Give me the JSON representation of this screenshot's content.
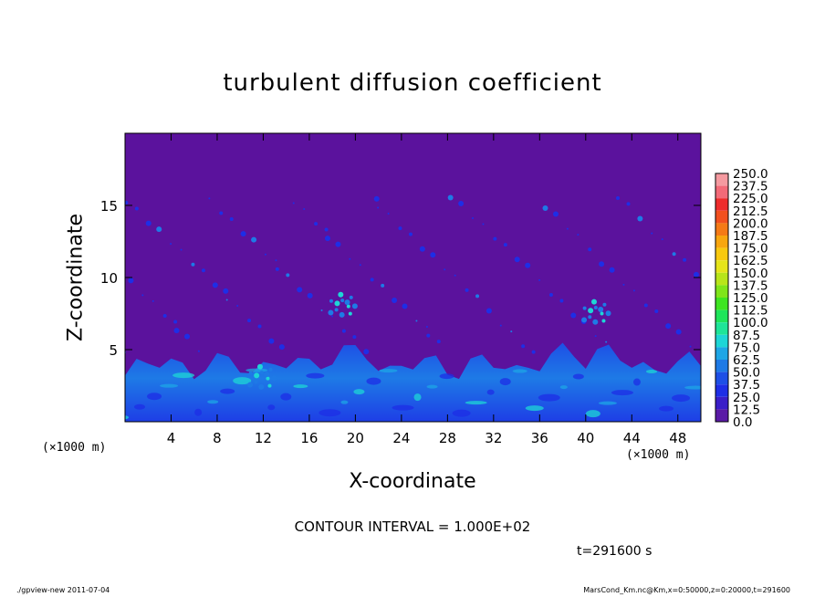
{
  "chart_data": {
    "type": "heatmap",
    "title": "turbulent diffusion coefficient",
    "xlabel": "X-coordinate",
    "ylabel": "Z-coordinate",
    "x_unit": "(×1000 m)",
    "y_unit": "(×1000 m)",
    "xlim": [
      0,
      50
    ],
    "ylim": [
      0,
      20
    ],
    "x_ticks": [
      "4",
      "8",
      "12",
      "16",
      "20",
      "24",
      "28",
      "32",
      "36",
      "40",
      "44",
      "48"
    ],
    "y_ticks": [
      "5",
      "10",
      "15"
    ],
    "colorbar": {
      "levels": [
        "250.0",
        "237.5",
        "225.0",
        "212.5",
        "200.0",
        "187.5",
        "175.0",
        "162.5",
        "150.0",
        "137.5",
        "125.0",
        "112.5",
        "100.0",
        "87.5",
        "75.0",
        "62.5",
        "50.0",
        "37.5",
        "25.0",
        "12.5",
        "0.0"
      ],
      "colors": [
        "#f59aa0",
        "#f36a78",
        "#ee2c2c",
        "#f2501f",
        "#f57a16",
        "#f8a60f",
        "#f8c90f",
        "#e6e51a",
        "#b8e51a",
        "#7fe51a",
        "#3ee521",
        "#1ee55a",
        "#1ee598",
        "#1ed6d6",
        "#1ea6e6",
        "#1e7ae6",
        "#1e4fe6",
        "#1e2ee6",
        "#3a1ec8",
        "#5a1aa6"
      ]
    },
    "background_color": "#5b129d",
    "boundary_layer_top_km": 4.5,
    "contour_interval": "CONTOUR INTERVAL = 1.000E+02",
    "time": "t=291600 s"
  },
  "footer": {
    "program": "./gpview-new   2011-07-04",
    "source": "MarsCond_Km.nc@Km,x=0:50000,z=0:20000,t=291600"
  }
}
